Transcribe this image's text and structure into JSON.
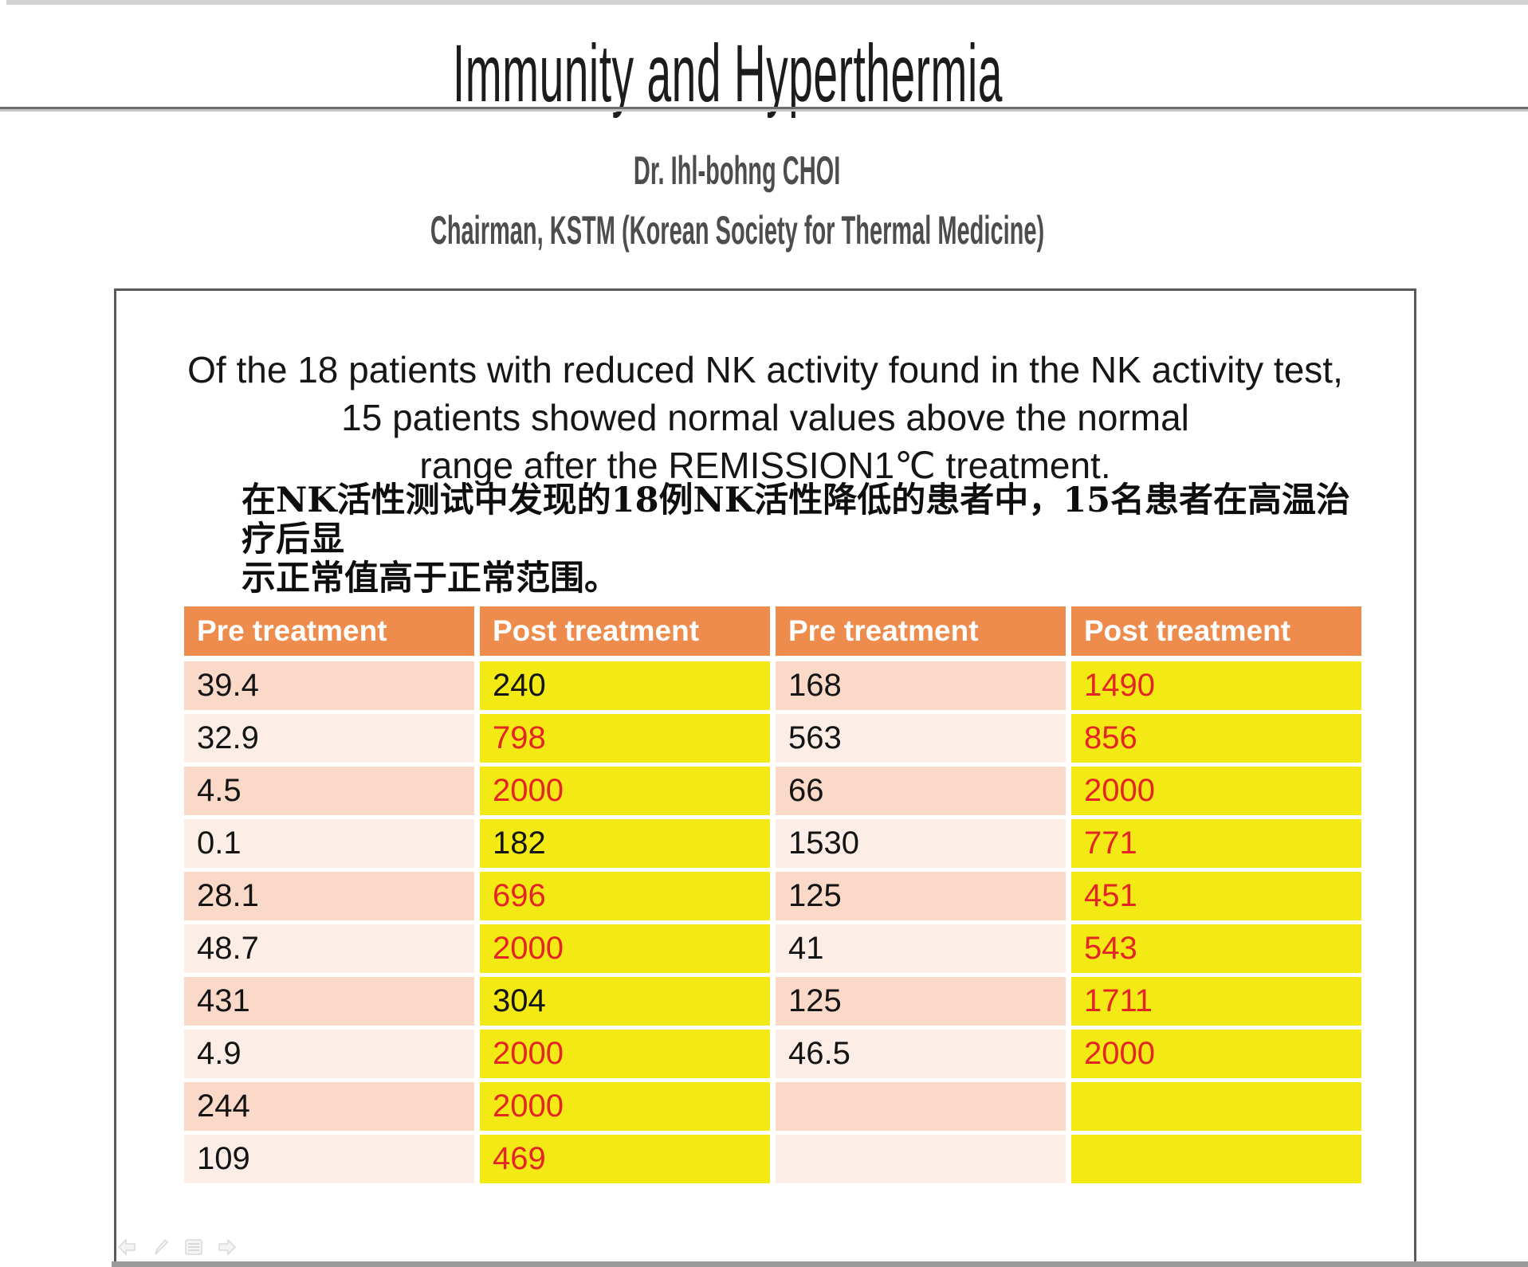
{
  "header": {
    "title": "Immunity and Hyperthermia",
    "author_line1": "Dr. Ihl-bohng  CHOI",
    "author_line2": "Chairman, KSTM (Korean Society for Thermal Medicine)"
  },
  "content_box": {
    "english_lines": [
      "Of the 18 patients with reduced NK activity found in the NK activity test,",
      "15 patients showed normal values above the normal",
      "range after the REMISSION1℃ treatment."
    ],
    "chinese_lines": [
      "在NK活性测试中发现的18例NK活性降低的患者中，15名患者在高温治疗后显",
      "示正常值高于正常范围。"
    ]
  },
  "table": {
    "headers": [
      "Pre treatment",
      "Post treatment",
      "Pre treatment",
      "Post treatment"
    ],
    "rows": [
      {
        "cells": [
          {
            "text": "39.4",
            "red": false
          },
          {
            "text": "240",
            "red": false
          },
          {
            "text": "168",
            "red": false
          },
          {
            "text": "1490",
            "red": true
          }
        ]
      },
      {
        "cells": [
          {
            "text": "32.9",
            "red": false
          },
          {
            "text": "798",
            "red": true
          },
          {
            "text": "563",
            "red": false
          },
          {
            "text": "856",
            "red": true
          }
        ]
      },
      {
        "cells": [
          {
            "text": "4.5",
            "red": false
          },
          {
            "text": "2000",
            "red": true
          },
          {
            "text": "66",
            "red": false
          },
          {
            "text": "2000",
            "red": true
          }
        ]
      },
      {
        "cells": [
          {
            "text": "0.1",
            "red": false
          },
          {
            "text": "182",
            "red": false
          },
          {
            "text": "1530",
            "red": false
          },
          {
            "text": "771",
            "red": true
          }
        ]
      },
      {
        "cells": [
          {
            "text": "28.1",
            "red": false
          },
          {
            "text": "696",
            "red": true
          },
          {
            "text": "125",
            "red": false
          },
          {
            "text": "451",
            "red": true
          }
        ]
      },
      {
        "cells": [
          {
            "text": "48.7",
            "red": false
          },
          {
            "text": "2000",
            "red": true
          },
          {
            "text": "41",
            "red": false
          },
          {
            "text": "543",
            "red": true
          }
        ]
      },
      {
        "cells": [
          {
            "text": "431",
            "red": false
          },
          {
            "text": "304",
            "red": false
          },
          {
            "text": "125",
            "red": false
          },
          {
            "text": "1711",
            "red": true
          }
        ]
      },
      {
        "cells": [
          {
            "text": "4.9",
            "red": false
          },
          {
            "text": "2000",
            "red": true
          },
          {
            "text": "46.5",
            "red": false
          },
          {
            "text": "2000",
            "red": true
          }
        ]
      },
      {
        "cells": [
          {
            "text": "244",
            "red": false
          },
          {
            "text": "2000",
            "red": true
          },
          {
            "text": "",
            "red": false
          },
          {
            "text": "",
            "red": false
          }
        ]
      },
      {
        "cells": [
          {
            "text": "109",
            "red": false
          },
          {
            "text": "469",
            "red": true
          },
          {
            "text": "",
            "red": false
          },
          {
            "text": "",
            "red": false
          }
        ]
      }
    ]
  },
  "nav_controls": {
    "icons": [
      "previous-slide",
      "pen-tool",
      "slide-menu",
      "next-slide"
    ]
  },
  "colors": {
    "header_orange": "#EE8C4D",
    "row_pink_dark": "#FBD9C8",
    "row_pink_light": "#FCEEE6",
    "cell_yellow": "#F3E914",
    "value_red": "#E42525",
    "box_border_gray": "#5A5A5A",
    "top_bar_gray": "#D2D2D2",
    "bottom_bar_gray": "#9A9A9A"
  }
}
